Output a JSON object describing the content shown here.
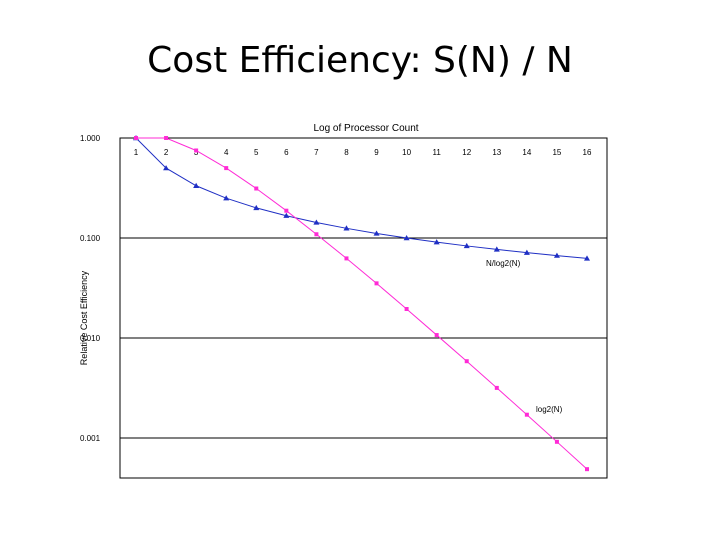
{
  "slide": {
    "title": "Cost Efficiency: S(N) / N"
  },
  "chart_data": {
    "type": "line",
    "title": "Log of Processor Count",
    "ylabel": "Relative Cost Efficiency",
    "xlabel": "",
    "y_scale": "log",
    "ylim": [
      0.0005,
      1.0
    ],
    "xlim": [
      1,
      16
    ],
    "grid": true,
    "x_ticks": [
      "1",
      "2",
      "3",
      "4",
      "5",
      "6",
      "7",
      "8",
      "9",
      "10",
      "11",
      "12",
      "13",
      "14",
      "15",
      "16"
    ],
    "y_ticks": [
      {
        "value": 1.0,
        "label": "1.000"
      },
      {
        "value": 0.1,
        "label": "0.100"
      },
      {
        "value": 0.01,
        "label": "0.010"
      },
      {
        "value": 0.001,
        "label": "0.001"
      }
    ],
    "x": [
      1,
      2,
      3,
      4,
      5,
      6,
      7,
      8,
      9,
      10,
      11,
      12,
      13,
      14,
      15,
      16
    ],
    "series": [
      {
        "name": "N/log2(N)",
        "color": "#1f2fc4",
        "marker": "triangle",
        "values": [
          1.0,
          0.5,
          0.333,
          0.25,
          0.2,
          0.167,
          0.143,
          0.125,
          0.111,
          0.1,
          0.0909,
          0.0833,
          0.0769,
          0.0714,
          0.0667,
          0.0625
        ]
      },
      {
        "name": "log2(N)",
        "color": "#ff2bd6",
        "marker": "square",
        "values": [
          1.0,
          1.0,
          0.75,
          0.5,
          0.3125,
          0.1875,
          0.109,
          0.0625,
          0.0352,
          0.0195,
          0.0107,
          0.00586,
          0.00317,
          0.00171,
          0.000916,
          0.000488
        ]
      }
    ]
  }
}
